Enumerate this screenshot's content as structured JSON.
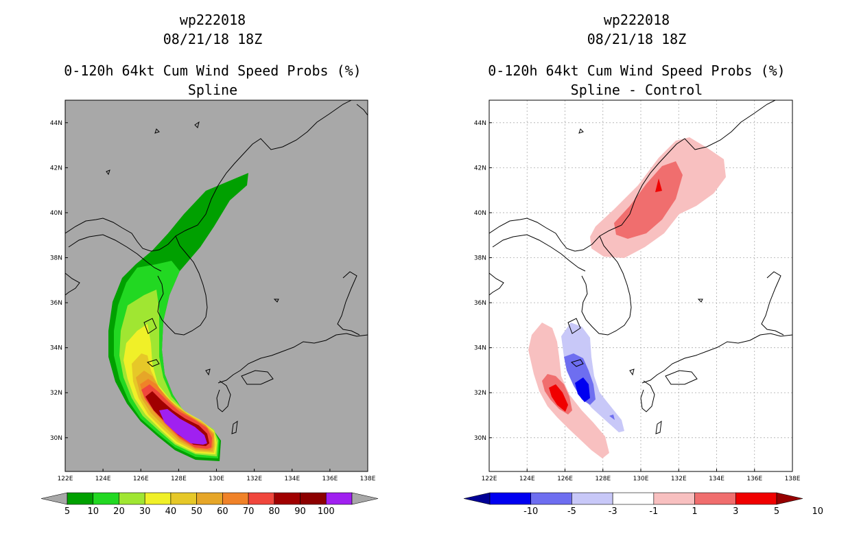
{
  "chart_data": [
    {
      "type": "heatmap",
      "panel": "left",
      "title_lines": [
        "wp222018",
        "08/21/18 18Z",
        "0-120h 64kt Cum Wind Speed Probs (%)",
        "Spline"
      ],
      "x_ticks": [
        "122E",
        "124E",
        "126E",
        "128E",
        "130E",
        "132E",
        "134E",
        "136E",
        "138E"
      ],
      "y_ticks": [
        "30N",
        "32N",
        "34N",
        "36N",
        "38N",
        "40N",
        "42N",
        "44N"
      ],
      "xlim": [
        122,
        138
      ],
      "ylim": [
        28.5,
        45
      ],
      "grid": false,
      "background": "#a8a8a8",
      "colorbar": {
        "labels": [
          "5",
          "10",
          "20",
          "30",
          "40",
          "50",
          "60",
          "70",
          "80",
          "90",
          "100"
        ],
        "colors": [
          "#00a000",
          "#22d822",
          "#a0e632",
          "#f0f028",
          "#e6c828",
          "#e6a628",
          "#f08228",
          "#f0463c",
          "#a00000",
          "#8c0000",
          "#a020f0"
        ]
      }
    },
    {
      "type": "heatmap",
      "panel": "right",
      "title_lines": [
        "wp222018",
        "08/21/18 18Z",
        "0-120h 64kt Cum Wind Speed Probs (%)",
        "Spline - Control"
      ],
      "x_ticks": [
        "122E",
        "124E",
        "126E",
        "128E",
        "130E",
        "132E",
        "134E",
        "136E",
        "138E"
      ],
      "y_ticks": [
        "30N",
        "32N",
        "34N",
        "36N",
        "38N",
        "40N",
        "42N",
        "44N"
      ],
      "xlim": [
        122,
        138
      ],
      "ylim": [
        28.5,
        45
      ],
      "grid": true,
      "background": "#ffffff",
      "colorbar": {
        "labels": [
          "-10",
          "-5",
          "-3",
          "-1",
          "1",
          "3",
          "5",
          "10"
        ],
        "colors": [
          "#000096",
          "#0000f0",
          "#6e6ef0",
          "#c8c8f8",
          "#ffffff",
          "#f8c0c0",
          "#f06e6e",
          "#f00000",
          "#960000"
        ]
      }
    }
  ]
}
